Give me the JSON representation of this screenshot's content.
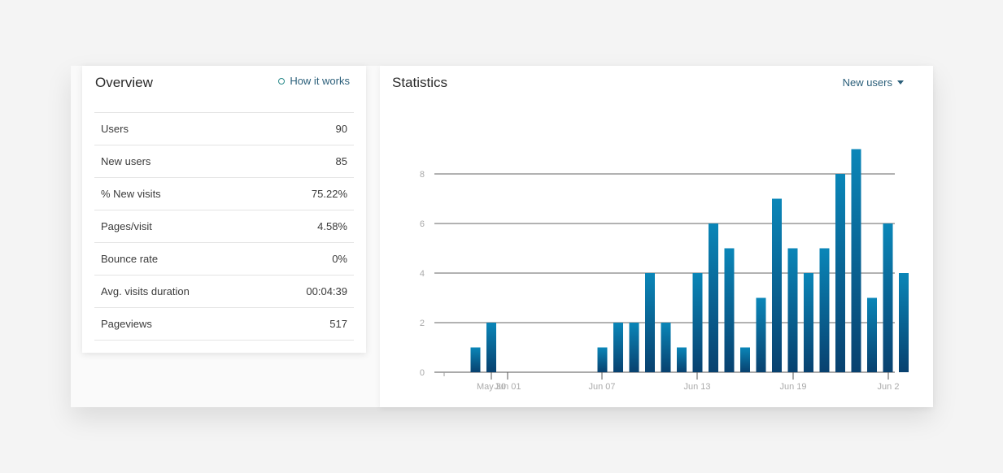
{
  "overview": {
    "title": "Overview",
    "how_link": "How it works",
    "metrics": [
      {
        "label": "Users",
        "value": "90"
      },
      {
        "label": "New users",
        "value": "85"
      },
      {
        "label": "% New visits",
        "value": "75.22%"
      },
      {
        "label": "Pages/visit",
        "value": "4.58%"
      },
      {
        "label": "Bounce rate",
        "value": "0%"
      },
      {
        "label": "Avg. visits duration",
        "value": "00:04:39"
      },
      {
        "label": "Pageviews",
        "value": "517"
      }
    ]
  },
  "statistics": {
    "title": "Statistics",
    "selected_metric": "New users"
  },
  "colors": {
    "bar_top": "#0a86b8",
    "bar_bottom": "#08416f",
    "link": "#2b5f7a"
  },
  "chart_data": {
    "type": "bar",
    "ylim": [
      0,
      8
    ],
    "yticks": [
      "0",
      "2",
      "4",
      "6",
      "8"
    ],
    "xticks": [
      "May 30",
      "Jun 01",
      "Jun 07",
      "Jun 13",
      "Jun 19",
      "Jun 2"
    ],
    "grid": true,
    "series": [
      {
        "values": [
          0,
          1,
          2,
          0,
          0,
          0,
          0,
          0,
          0,
          1,
          2,
          2,
          4,
          2,
          1,
          4,
          6,
          5,
          1,
          3,
          7,
          5,
          4,
          5,
          8,
          9,
          3,
          6,
          4
        ]
      }
    ]
  }
}
